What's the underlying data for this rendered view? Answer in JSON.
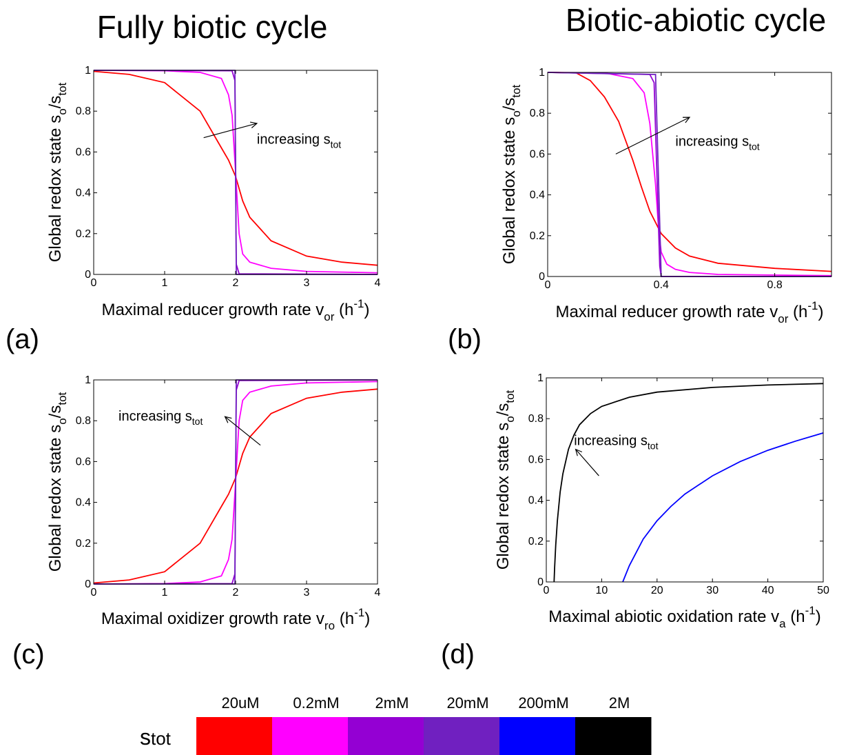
{
  "column_titles": [
    "Fully biotic cycle",
    "Biotic-abiotic cycle"
  ],
  "annotation_text": "increasing s",
  "annotation_sub": "tot",
  "y_label": {
    "main": "Global redox state s",
    "sub1": "o",
    "mid": "/s",
    "sub2": "tot"
  },
  "legend": {
    "title_main": "s",
    "title_sub": "tot",
    "entries": [
      {
        "label": "20uM",
        "color": "#ff0000"
      },
      {
        "label": "0.2mM",
        "color": "#ff00ff"
      },
      {
        "label": "2mM",
        "color": "#9400d3"
      },
      {
        "label": "20mM",
        "color": "#7020c0"
      },
      {
        "label": "200mM",
        "color": "#0000ff"
      },
      {
        "label": "2M",
        "color": "#000000"
      }
    ]
  },
  "chart_data": [
    {
      "panel_label": "(a)",
      "type": "line",
      "xlabel": {
        "main": "Maximal reducer growth rate v",
        "sub": "or",
        "unit_pre": " (h",
        "sup": "-1",
        "unit_post": ")"
      },
      "ylabel": "Global redox state s_o/s_tot",
      "xlim": [
        0,
        4
      ],
      "ylim": [
        0,
        1
      ],
      "x_ticks": [
        "0",
        "1",
        "2",
        "3",
        "4"
      ],
      "y_ticks": [
        "0",
        "0.2",
        "0.4",
        "0.6",
        "0.8",
        "1"
      ],
      "grid": false,
      "series": [
        {
          "color": "#ff0000",
          "x": [
            0,
            0.5,
            1.0,
            1.5,
            1.8,
            1.9,
            2.0,
            2.1,
            2.2,
            2.5,
            3.0,
            3.5,
            4.0
          ],
          "y": [
            0.995,
            0.98,
            0.94,
            0.8,
            0.62,
            0.56,
            0.48,
            0.36,
            0.28,
            0.165,
            0.09,
            0.06,
            0.045
          ]
        },
        {
          "color": "#ff00ff",
          "x": [
            0,
            1.0,
            1.5,
            1.8,
            1.9,
            1.95,
            2.0,
            2.05,
            2.1,
            2.2,
            2.5,
            3.0,
            4.0
          ],
          "y": [
            1.0,
            0.998,
            0.99,
            0.96,
            0.88,
            0.78,
            0.5,
            0.2,
            0.1,
            0.06,
            0.03,
            0.015,
            0.008
          ]
        },
        {
          "color": "#9400d3",
          "x": [
            0,
            1.95,
            1.99,
            2.0,
            2.01,
            2.05,
            4.0
          ],
          "y": [
            1.0,
            0.998,
            0.95,
            0.5,
            0.05,
            0.003,
            0.0
          ]
        },
        {
          "color": "#7020c0",
          "x": [
            0,
            1.99,
            2.0,
            2.01,
            4.0
          ],
          "y": [
            1.0,
            1.0,
            0.5,
            0.0,
            0.0
          ]
        }
      ],
      "arrow": {
        "from": [
          1.55,
          0.67
        ],
        "to": [
          2.3,
          0.74
        ]
      },
      "annotation_pos": [
        2.3,
        0.64
      ]
    },
    {
      "panel_label": "(b)",
      "type": "line",
      "xlabel": {
        "main": "Maximal reducer growth rate v",
        "sub": "or",
        "unit_pre": " (h",
        "sup": "-1",
        "unit_post": ")"
      },
      "ylabel": "Global redox state s_o/s_tot",
      "xlim": [
        0,
        1
      ],
      "ylim": [
        0,
        1
      ],
      "x_ticks": [
        "0",
        "0.4",
        "0.8"
      ],
      "x_tick_values": [
        0,
        0.4,
        0.8
      ],
      "y_ticks": [
        "0",
        "0.2",
        "0.4",
        "0.6",
        "0.8",
        "1"
      ],
      "grid": false,
      "series": [
        {
          "color": "#ff0000",
          "x": [
            0,
            0.1,
            0.15,
            0.2,
            0.25,
            0.3,
            0.33,
            0.36,
            0.4,
            0.45,
            0.5,
            0.6,
            0.8,
            1.0
          ],
          "y": [
            1.0,
            0.998,
            0.96,
            0.88,
            0.76,
            0.57,
            0.44,
            0.32,
            0.21,
            0.14,
            0.1,
            0.065,
            0.04,
            0.025
          ]
        },
        {
          "color": "#ff00ff",
          "x": [
            0,
            0.2,
            0.3,
            0.34,
            0.36,
            0.38,
            0.39,
            0.4,
            0.42,
            0.45,
            0.5,
            0.6,
            1.0
          ],
          "y": [
            1.0,
            0.998,
            0.97,
            0.9,
            0.75,
            0.45,
            0.25,
            0.12,
            0.06,
            0.035,
            0.02,
            0.01,
            0.004
          ]
        },
        {
          "color": "#9400d3",
          "x": [
            0,
            0.36,
            0.375,
            0.385,
            0.395,
            0.4,
            1.0
          ],
          "y": [
            1.0,
            0.99,
            0.95,
            0.5,
            0.05,
            0.0,
            0.0
          ]
        },
        {
          "color": "#7020c0",
          "x": [
            0,
            0.38,
            0.39,
            0.4,
            1.0
          ],
          "y": [
            1.0,
            0.99,
            0.5,
            0.0,
            0.0
          ]
        }
      ],
      "arrow": {
        "from": [
          0.24,
          0.6
        ],
        "to": [
          0.5,
          0.78
        ]
      },
      "annotation_pos": [
        0.45,
        0.64
      ]
    },
    {
      "panel_label": "(c)",
      "type": "line",
      "xlabel": {
        "main": "Maximal oxidizer growth rate v",
        "sub": "ro",
        "unit_pre": " (h",
        "sup": "-1",
        "unit_post": ")"
      },
      "ylabel": "Global redox state s_o/s_tot",
      "xlim": [
        0,
        4
      ],
      "ylim": [
        0,
        1
      ],
      "x_ticks": [
        "0",
        "1",
        "2",
        "3",
        "4"
      ],
      "y_ticks": [
        "0",
        "0.2",
        "0.4",
        "0.6",
        "0.8",
        "1"
      ],
      "grid": false,
      "series": [
        {
          "color": "#ff0000",
          "x": [
            0,
            0.5,
            1.0,
            1.5,
            1.8,
            1.9,
            2.0,
            2.1,
            2.2,
            2.5,
            3.0,
            3.5,
            4.0
          ],
          "y": [
            0.005,
            0.02,
            0.06,
            0.2,
            0.38,
            0.44,
            0.52,
            0.64,
            0.72,
            0.835,
            0.91,
            0.94,
            0.955
          ]
        },
        {
          "color": "#ff00ff",
          "x": [
            0,
            1.0,
            1.5,
            1.8,
            1.9,
            1.95,
            2.0,
            2.05,
            2.1,
            2.2,
            2.5,
            3.0,
            4.0
          ],
          "y": [
            0.0,
            0.002,
            0.01,
            0.04,
            0.12,
            0.22,
            0.5,
            0.8,
            0.9,
            0.94,
            0.97,
            0.985,
            0.992
          ]
        },
        {
          "color": "#9400d3",
          "x": [
            0,
            1.95,
            1.99,
            2.0,
            2.01,
            2.05,
            4.0
          ],
          "y": [
            0.0,
            0.002,
            0.05,
            0.5,
            0.95,
            0.997,
            1.0
          ]
        },
        {
          "color": "#7020c0",
          "x": [
            0,
            1.99,
            2.0,
            2.01,
            4.0
          ],
          "y": [
            0.0,
            0.0,
            0.5,
            1.0,
            1.0
          ]
        }
      ],
      "arrow": {
        "from": [
          2.35,
          0.68
        ],
        "to": [
          1.85,
          0.82
        ]
      },
      "annotation_pos": [
        0.35,
        0.8
      ]
    },
    {
      "panel_label": "(d)",
      "type": "line",
      "xlabel": {
        "main": "Maximal abiotic oxidation rate v",
        "sub": "a",
        "unit_pre": " (h",
        "sup": "-1",
        "unit_post": ")"
      },
      "ylabel": "Global redox state s_o/s_tot",
      "xlim": [
        0,
        50
      ],
      "ylim": [
        0,
        1
      ],
      "x_ticks": [
        "0",
        "10",
        "20",
        "30",
        "40",
        "50"
      ],
      "y_ticks": [
        "0",
        "0.2",
        "0.4",
        "0.6",
        "0.8",
        "1"
      ],
      "grid": false,
      "series": [
        {
          "color": "#000000",
          "x": [
            1.4,
            1.5,
            1.7,
            2.0,
            2.5,
            3.0,
            4.0,
            5.0,
            6.0,
            8.0,
            10.0,
            15.0,
            20.0,
            30.0,
            40.0,
            50.0
          ],
          "y": [
            0.0,
            0.07,
            0.18,
            0.3,
            0.44,
            0.53,
            0.65,
            0.72,
            0.77,
            0.825,
            0.86,
            0.905,
            0.93,
            0.953,
            0.965,
            0.972
          ]
        },
        {
          "color": "#0000ff",
          "x": [
            13.8,
            15.0,
            17.5,
            20.0,
            22.5,
            25.0,
            30.0,
            35.0,
            40.0,
            45.0,
            50.0
          ],
          "y": [
            0.0,
            0.08,
            0.21,
            0.3,
            0.37,
            0.43,
            0.52,
            0.59,
            0.645,
            0.69,
            0.73
          ]
        }
      ],
      "arrow": {
        "from": [
          9.5,
          0.52
        ],
        "to": [
          5.3,
          0.65
        ]
      },
      "annotation_pos": [
        5.0,
        0.67
      ]
    }
  ]
}
